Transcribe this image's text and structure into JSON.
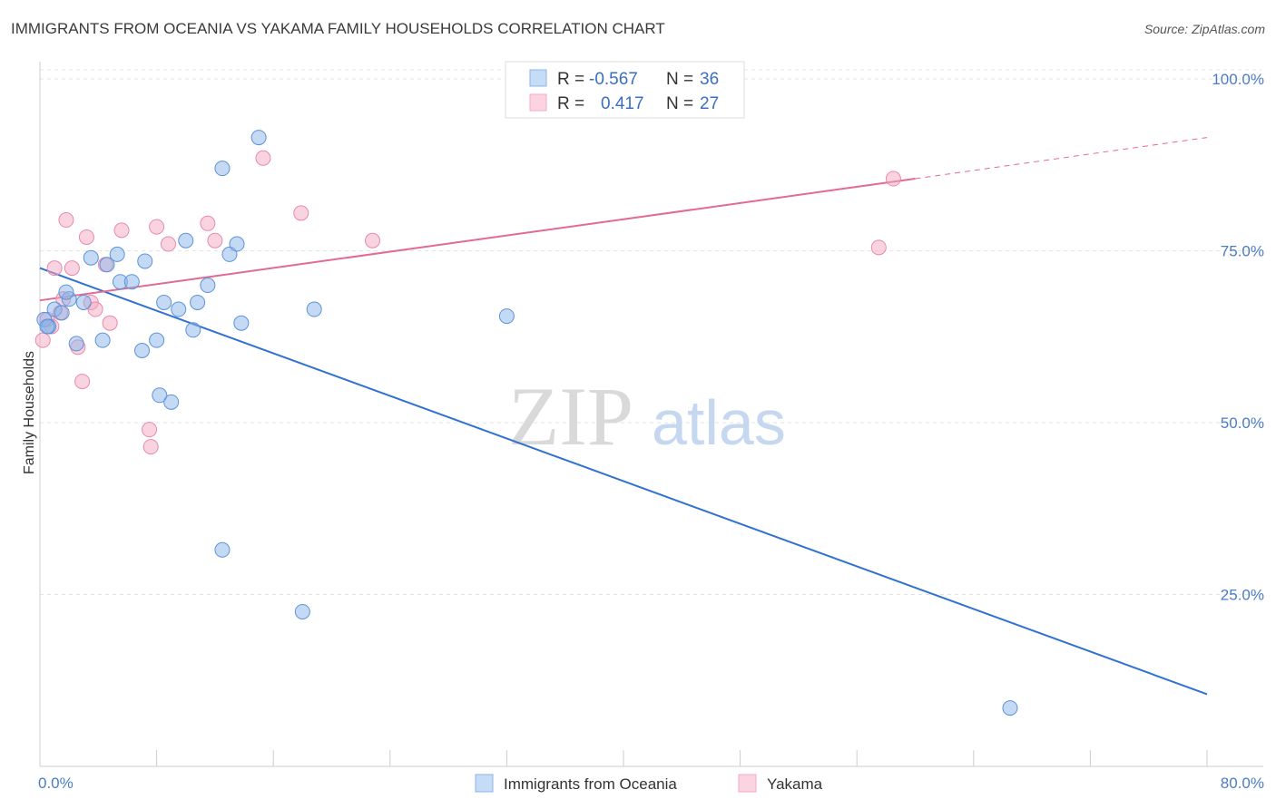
{
  "title": "IMMIGRANTS FROM OCEANIA VS YAKAMA FAMILY HOUSEHOLDS CORRELATION CHART",
  "source": "Source: ZipAtlas.com",
  "watermark": {
    "zip": "ZIP",
    "atlas": "atlas"
  },
  "colors": {
    "blue": "#8ab4e8",
    "blue_line": "#2f72d0",
    "pink": "#f4a9c2",
    "pink_line": "#e26a94",
    "axis_label": "#4a7cc7"
  },
  "legend": {
    "series1": {
      "r_label": "R =",
      "r_value": "-0.567",
      "n_label": "N =",
      "n_value": "36"
    },
    "series2": {
      "r_label": "R =",
      "r_value": "0.417",
      "n_label": "N =",
      "n_value": "27"
    }
  },
  "chart_data": {
    "type": "scatter",
    "title": "IMMIGRANTS FROM OCEANIA VS YAKAMA FAMILY HOUSEHOLDS CORRELATION CHART",
    "xlabel": "",
    "ylabel": "Family Households",
    "xlim": [
      0,
      80
    ],
    "ylim": [
      0,
      102
    ],
    "x_tick_labels": [
      "0.0%",
      "80.0%"
    ],
    "y_ticks": [
      25,
      50,
      75,
      100
    ],
    "y_tick_labels": [
      "25.0%",
      "50.0%",
      "75.0%",
      "100.0%"
    ],
    "grid": true,
    "legend_position": "top-center",
    "series": [
      {
        "name": "Immigrants from Oceania",
        "color": "#8ab4e8",
        "points": [
          [
            0.3,
            65.0
          ],
          [
            0.6,
            64.0
          ],
          [
            1.0,
            66.5
          ],
          [
            1.5,
            66.0
          ],
          [
            2.0,
            68.0
          ],
          [
            2.5,
            61.5
          ],
          [
            3.0,
            67.5
          ],
          [
            3.5,
            74.0
          ],
          [
            4.3,
            62.0
          ],
          [
            4.6,
            73.0
          ],
          [
            5.3,
            74.5
          ],
          [
            5.5,
            70.5
          ],
          [
            6.3,
            70.5
          ],
          [
            7.0,
            60.5
          ],
          [
            7.2,
            73.5
          ],
          [
            8.0,
            62.0
          ],
          [
            8.2,
            54.0
          ],
          [
            8.5,
            67.5
          ],
          [
            9.0,
            53.0
          ],
          [
            9.5,
            66.5
          ],
          [
            10.0,
            76.5
          ],
          [
            10.5,
            63.5
          ],
          [
            10.8,
            67.5
          ],
          [
            11.5,
            70.0
          ],
          [
            12.5,
            87.0
          ],
          [
            13.0,
            74.5
          ],
          [
            13.5,
            76.0
          ],
          [
            13.8,
            64.5
          ],
          [
            15.0,
            91.5
          ],
          [
            12.5,
            31.5
          ],
          [
            18.0,
            22.5
          ],
          [
            18.8,
            66.5
          ],
          [
            32.0,
            65.5
          ],
          [
            66.5,
            8.5
          ],
          [
            0.5,
            64.0
          ],
          [
            1.8,
            69.0
          ]
        ],
        "trend": {
          "x": [
            0,
            80
          ],
          "y": [
            72.5,
            10.5
          ]
        }
      },
      {
        "name": "Yakama",
        "color": "#f4a9c2",
        "points": [
          [
            0.2,
            62.0
          ],
          [
            0.5,
            65.0
          ],
          [
            1.0,
            72.5
          ],
          [
            1.6,
            68.0
          ],
          [
            1.8,
            79.5
          ],
          [
            2.2,
            72.5
          ],
          [
            2.6,
            61.0
          ],
          [
            2.9,
            56.0
          ],
          [
            3.2,
            77.0
          ],
          [
            3.5,
            67.5
          ],
          [
            3.8,
            66.5
          ],
          [
            4.5,
            73.0
          ],
          [
            4.8,
            64.5
          ],
          [
            5.6,
            78.0
          ],
          [
            7.5,
            49.0
          ],
          [
            7.6,
            46.5
          ],
          [
            8.0,
            78.5
          ],
          [
            8.8,
            76.0
          ],
          [
            11.5,
            79.0
          ],
          [
            12.0,
            76.5
          ],
          [
            15.3,
            88.5
          ],
          [
            17.9,
            80.5
          ],
          [
            22.8,
            76.5
          ],
          [
            57.5,
            75.5
          ],
          [
            58.5,
            85.5
          ],
          [
            1.4,
            66.0
          ],
          [
            0.8,
            64.0
          ]
        ],
        "trend": {
          "x": [
            0,
            60
          ],
          "y": [
            67.8,
            85.5
          ]
        },
        "trend_dashed": {
          "x": [
            60,
            80
          ],
          "y": [
            85.5,
            91.5
          ]
        }
      }
    ]
  },
  "bottom_legend": {
    "series1": "Immigrants from Oceania",
    "series2": "Yakama"
  }
}
